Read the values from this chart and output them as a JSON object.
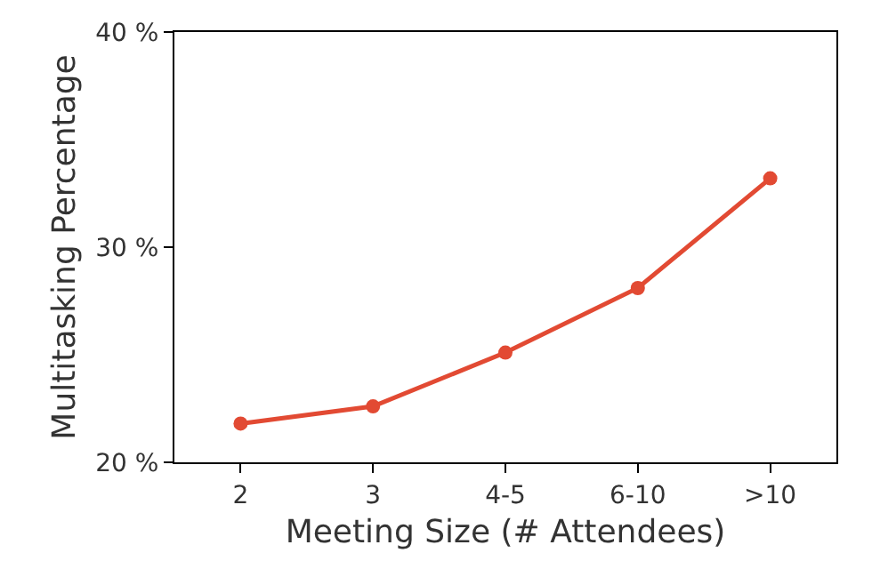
{
  "chart_data": {
    "type": "line",
    "xlabel": "Meeting Size (# Attendees)",
    "ylabel": "Multitasking Percentage",
    "categories": [
      "2",
      "3",
      "4-5",
      "6-10",
      ">10"
    ],
    "series": [
      {
        "color": "#e24a33",
        "values": [
          21.8,
          22.6,
          25.1,
          28.1,
          33.2
        ]
      }
    ],
    "ylim": [
      20,
      40
    ],
    "yticks": [
      {
        "value": 20,
        "label": "20 %"
      },
      {
        "value": 30,
        "label": "30 %"
      },
      {
        "value": 40,
        "label": "40 %"
      }
    ],
    "marker": "circle",
    "line_style": "solid"
  }
}
